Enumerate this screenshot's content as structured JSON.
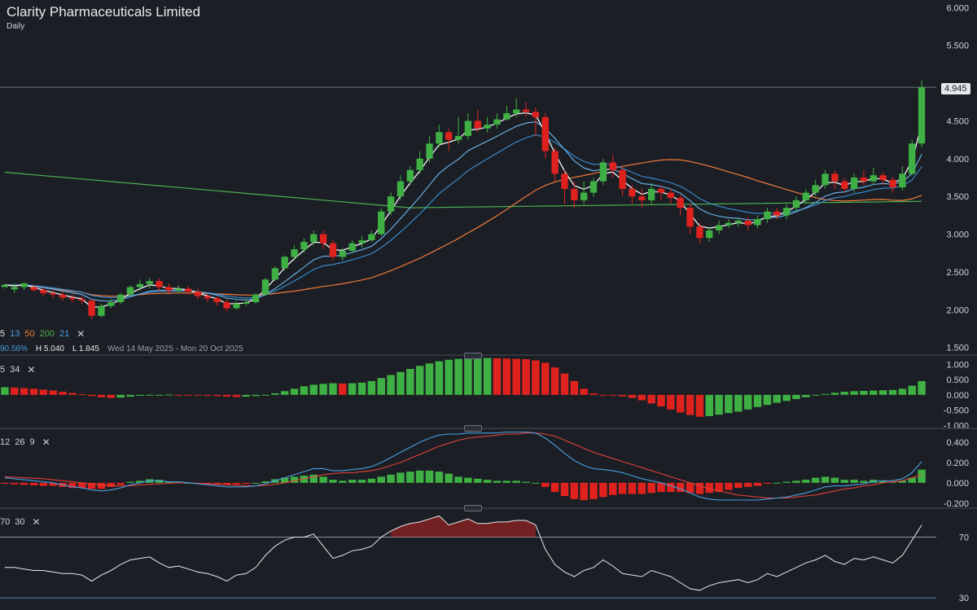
{
  "header": {
    "title": "Clarity Pharmaceuticals Limited",
    "interval": "Daily"
  },
  "legends": {
    "ma": {
      "periods": [
        "5",
        "13",
        "50",
        "200",
        "21"
      ],
      "colors": [
        "#e6e8ec",
        "#4a9ee0",
        "#f07a3a",
        "#4caf50",
        "#4a9ee0"
      ]
    },
    "info": {
      "change": "90.56%",
      "high": "H 5.040",
      "low": "L 1.845",
      "range": "Wed 14 May 2025 - Mon 20 Oct 2025"
    },
    "ao": {
      "params": [
        "5",
        "34"
      ]
    },
    "macd": {
      "params": [
        "12",
        "26",
        "9"
      ]
    },
    "rsi": {
      "params": [
        "70",
        "30"
      ]
    }
  },
  "last_price": "4.945",
  "colors": {
    "up": "#3fb043",
    "down": "#e0221f",
    "bg": "#1b1f25",
    "grid": "#3a3f48"
  },
  "chart_data": [
    {
      "type": "candlestick",
      "title": "Clarity Pharmaceuticals Limited",
      "y_ticks": [
        "6.000",
        "5.500",
        "4.500",
        "4.000",
        "3.500",
        "3.000",
        "2.500",
        "2.000",
        "1.500"
      ],
      "ylim": [
        1.4,
        6.1
      ],
      "candles": [
        [
          2.3,
          2.33,
          2.28,
          2.27
        ],
        [
          2.27,
          2.3,
          2.35,
          2.22
        ],
        [
          2.3,
          2.35,
          2.36,
          2.26
        ],
        [
          2.3,
          2.26,
          2.33,
          2.24
        ],
        [
          2.26,
          2.22,
          2.3,
          2.18
        ],
        [
          2.22,
          2.2,
          2.26,
          2.15
        ],
        [
          2.2,
          2.16,
          2.24,
          2.12
        ],
        [
          2.16,
          2.14,
          2.2,
          2.1
        ],
        [
          2.14,
          2.12,
          2.18,
          2.08
        ],
        [
          2.12,
          1.92,
          2.14,
          1.88
        ],
        [
          1.92,
          2.05,
          2.08,
          1.9
        ],
        [
          2.05,
          2.1,
          2.14,
          2.02
        ],
        [
          2.1,
          2.2,
          2.22,
          2.08
        ],
        [
          2.2,
          2.3,
          2.32,
          2.18
        ],
        [
          2.3,
          2.34,
          2.4,
          2.25
        ],
        [
          2.34,
          2.38,
          2.42,
          2.28
        ],
        [
          2.38,
          2.3,
          2.42,
          2.25
        ],
        [
          2.3,
          2.25,
          2.35,
          2.2
        ],
        [
          2.25,
          2.28,
          2.32,
          2.22
        ],
        [
          2.28,
          2.24,
          2.32,
          2.2
        ],
        [
          2.24,
          2.18,
          2.28,
          2.14
        ],
        [
          2.18,
          2.15,
          2.22,
          2.1
        ],
        [
          2.15,
          2.1,
          2.18,
          2.05
        ],
        [
          2.1,
          2.02,
          2.14,
          1.98
        ],
        [
          2.02,
          2.08,
          2.12,
          2.0
        ],
        [
          2.08,
          2.1,
          2.14,
          2.05
        ],
        [
          2.1,
          2.2,
          2.22,
          2.08
        ],
        [
          2.2,
          2.4,
          2.42,
          2.18
        ],
        [
          2.4,
          2.55,
          2.58,
          2.38
        ],
        [
          2.55,
          2.7,
          2.72,
          2.52
        ],
        [
          2.7,
          2.8,
          2.85,
          2.65
        ],
        [
          2.8,
          2.9,
          2.95,
          2.75
        ],
        [
          2.9,
          3.0,
          3.05,
          2.85
        ],
        [
          3.0,
          2.88,
          3.05,
          2.8
        ],
        [
          2.88,
          2.7,
          2.92,
          2.65
        ],
        [
          2.7,
          2.78,
          2.82,
          2.65
        ],
        [
          2.78,
          2.88,
          2.92,
          2.75
        ],
        [
          2.88,
          2.92,
          2.98,
          2.82
        ],
        [
          2.92,
          3.0,
          3.05,
          2.9
        ],
        [
          3.0,
          3.3,
          3.35,
          2.98
        ],
        [
          3.3,
          3.5,
          3.55,
          3.25
        ],
        [
          3.5,
          3.7,
          3.78,
          3.45
        ],
        [
          3.7,
          3.85,
          3.9,
          3.65
        ],
        [
          3.85,
          4.0,
          4.1,
          3.8
        ],
        [
          4.0,
          4.2,
          4.3,
          3.95
        ],
        [
          4.2,
          4.35,
          4.45,
          4.15
        ],
        [
          4.35,
          4.25,
          4.4,
          4.1
        ],
        [
          4.25,
          4.3,
          4.55,
          4.2
        ],
        [
          4.3,
          4.5,
          4.6,
          4.25
        ],
        [
          4.5,
          4.4,
          4.65,
          4.35
        ],
        [
          4.4,
          4.45,
          4.55,
          4.35
        ],
        [
          4.45,
          4.52,
          4.6,
          4.4
        ],
        [
          4.52,
          4.6,
          4.7,
          4.5
        ],
        [
          4.6,
          4.65,
          4.8,
          4.55
        ],
        [
          4.65,
          4.62,
          4.75,
          4.55
        ],
        [
          4.62,
          4.55,
          4.68,
          4.3
        ],
        [
          4.55,
          4.1,
          4.6,
          4.0
        ],
        [
          4.1,
          3.8,
          4.15,
          3.7
        ],
        [
          3.8,
          3.6,
          3.85,
          3.4
        ],
        [
          3.6,
          3.45,
          3.7,
          3.35
        ],
        [
          3.45,
          3.55,
          3.7,
          3.4
        ],
        [
          3.55,
          3.7,
          3.75,
          3.5
        ],
        [
          3.7,
          3.95,
          4.0,
          3.65
        ],
        [
          3.95,
          3.85,
          4.05,
          3.75
        ],
        [
          3.85,
          3.6,
          3.9,
          3.5
        ],
        [
          3.6,
          3.5,
          3.65,
          3.4
        ],
        [
          3.5,
          3.45,
          3.6,
          3.35
        ],
        [
          3.45,
          3.6,
          3.68,
          3.4
        ],
        [
          3.6,
          3.55,
          3.65,
          3.45
        ],
        [
          3.55,
          3.48,
          3.6,
          3.4
        ],
        [
          3.48,
          3.35,
          3.52,
          3.25
        ],
        [
          3.35,
          3.1,
          3.4,
          3.0
        ],
        [
          3.1,
          2.95,
          3.15,
          2.88
        ],
        [
          2.95,
          3.05,
          3.1,
          2.9
        ],
        [
          3.05,
          3.12,
          3.18,
          3.0
        ],
        [
          3.12,
          3.15,
          3.2,
          3.08
        ],
        [
          3.15,
          3.18,
          3.22,
          3.1
        ],
        [
          3.18,
          3.12,
          3.22,
          3.05
        ],
        [
          3.12,
          3.2,
          3.25,
          3.08
        ],
        [
          3.2,
          3.3,
          3.35,
          3.15
        ],
        [
          3.3,
          3.25,
          3.35,
          3.2
        ],
        [
          3.25,
          3.35,
          3.4,
          3.2
        ],
        [
          3.35,
          3.45,
          3.5,
          3.3
        ],
        [
          3.45,
          3.55,
          3.6,
          3.4
        ],
        [
          3.55,
          3.65,
          3.72,
          3.5
        ],
        [
          3.65,
          3.8,
          3.85,
          3.6
        ],
        [
          3.8,
          3.7,
          3.85,
          3.6
        ],
        [
          3.7,
          3.6,
          3.75,
          3.55
        ],
        [
          3.6,
          3.75,
          3.8,
          3.55
        ],
        [
          3.75,
          3.7,
          3.85,
          3.65
        ],
        [
          3.7,
          3.78,
          3.88,
          3.65
        ],
        [
          3.78,
          3.72,
          3.82,
          3.65
        ],
        [
          3.72,
          3.62,
          3.76,
          3.55
        ],
        [
          3.62,
          3.8,
          3.9,
          3.58
        ],
        [
          3.8,
          4.2,
          4.25,
          3.78
        ],
        [
          4.2,
          4.945,
          5.04,
          4.15
        ]
      ]
    },
    {
      "type": "bar",
      "title": "Awesome Oscillator",
      "y_ticks": [
        "1.000",
        "0.500",
        "0.000",
        "-0.500",
        "-1.000"
      ],
      "ylim": [
        -1.1,
        1.25
      ],
      "values": [
        0.25,
        0.24,
        0.22,
        0.2,
        0.17,
        0.14,
        0.1,
        0.06,
        0.02,
        -0.04,
        -0.08,
        -0.1,
        -0.09,
        -0.06,
        -0.03,
        -0.01,
        0.0,
        0.01,
        0.0,
        -0.01,
        -0.02,
        -0.03,
        -0.04,
        -0.06,
        -0.07,
        -0.06,
        -0.04,
        0.0,
        0.05,
        0.12,
        0.2,
        0.28,
        0.33,
        0.36,
        0.38,
        0.37,
        0.38,
        0.4,
        0.45,
        0.55,
        0.65,
        0.75,
        0.85,
        0.95,
        1.03,
        1.1,
        1.15,
        1.18,
        1.2,
        1.21,
        1.21,
        1.2,
        1.19,
        1.18,
        1.17,
        1.13,
        1.05,
        0.9,
        0.7,
        0.45,
        0.2,
        0.05,
        0.0,
        -0.02,
        -0.05,
        -0.1,
        -0.18,
        -0.28,
        -0.38,
        -0.48,
        -0.58,
        -0.66,
        -0.72,
        -0.7,
        -0.65,
        -0.6,
        -0.55,
        -0.48,
        -0.4,
        -0.33,
        -0.26,
        -0.2,
        -0.14,
        -0.08,
        -0.02,
        0.03,
        0.07,
        0.1,
        0.12,
        0.13,
        0.14,
        0.15,
        0.16,
        0.2,
        0.3,
        0.45
      ]
    },
    {
      "type": "line",
      "title": "MACD",
      "y_ticks": [
        "0.400",
        "0.200",
        "0.000",
        "-0.200"
      ],
      "ylim": [
        -0.25,
        0.52
      ],
      "macd": [
        0.05,
        0.04,
        0.03,
        0.02,
        0.01,
        0.0,
        -0.02,
        -0.04,
        -0.05,
        -0.07,
        -0.08,
        -0.07,
        -0.05,
        -0.02,
        0.0,
        0.02,
        0.02,
        0.01,
        0.01,
        0.0,
        -0.01,
        -0.02,
        -0.03,
        -0.04,
        -0.04,
        -0.04,
        -0.03,
        -0.01,
        0.02,
        0.05,
        0.08,
        0.11,
        0.14,
        0.14,
        0.12,
        0.12,
        0.13,
        0.14,
        0.16,
        0.2,
        0.25,
        0.3,
        0.35,
        0.4,
        0.44,
        0.47,
        0.48,
        0.48,
        0.49,
        0.49,
        0.49,
        0.49,
        0.5,
        0.5,
        0.5,
        0.49,
        0.44,
        0.37,
        0.29,
        0.22,
        0.17,
        0.14,
        0.13,
        0.12,
        0.1,
        0.07,
        0.04,
        0.02,
        0.0,
        -0.03,
        -0.06,
        -0.1,
        -0.14,
        -0.16,
        -0.17,
        -0.17,
        -0.17,
        -0.17,
        -0.17,
        -0.16,
        -0.15,
        -0.14,
        -0.12,
        -0.1,
        -0.07,
        -0.04,
        -0.03,
        -0.03,
        -0.02,
        -0.01,
        0.01,
        0.02,
        0.02,
        0.04,
        0.1,
        0.21
      ],
      "signal": [
        0.06,
        0.055,
        0.05,
        0.045,
        0.04,
        0.03,
        0.02,
        0.01,
        0.0,
        -0.01,
        -0.02,
        -0.03,
        -0.03,
        -0.03,
        -0.02,
        -0.015,
        -0.01,
        -0.005,
        0.0,
        0.0,
        -0.005,
        -0.01,
        -0.015,
        -0.02,
        -0.025,
        -0.03,
        -0.03,
        -0.025,
        -0.015,
        0.0,
        0.02,
        0.04,
        0.06,
        0.08,
        0.09,
        0.1,
        0.1,
        0.11,
        0.12,
        0.14,
        0.17,
        0.2,
        0.24,
        0.28,
        0.32,
        0.36,
        0.39,
        0.42,
        0.44,
        0.45,
        0.46,
        0.47,
        0.48,
        0.48,
        0.49,
        0.49,
        0.48,
        0.46,
        0.42,
        0.38,
        0.34,
        0.3,
        0.27,
        0.24,
        0.21,
        0.18,
        0.15,
        0.12,
        0.09,
        0.06,
        0.03,
        0.0,
        -0.03,
        -0.06,
        -0.08,
        -0.1,
        -0.12,
        -0.13,
        -0.14,
        -0.15,
        -0.15,
        -0.15,
        -0.14,
        -0.13,
        -0.12,
        -0.1,
        -0.08,
        -0.06,
        -0.05,
        -0.03,
        -0.02,
        0.0,
        0.01,
        0.02,
        0.05,
        0.08
      ],
      "hist": [
        -0.01,
        -0.015,
        -0.02,
        -0.025,
        -0.03,
        -0.03,
        -0.04,
        -0.05,
        -0.05,
        -0.06,
        -0.06,
        -0.04,
        -0.02,
        0.01,
        0.02,
        0.035,
        0.03,
        0.015,
        0.01,
        0.0,
        -0.005,
        -0.01,
        -0.015,
        -0.02,
        -0.015,
        -0.01,
        0.0,
        0.015,
        0.035,
        0.05,
        0.06,
        0.07,
        0.08,
        0.06,
        0.03,
        0.02,
        0.03,
        0.03,
        0.04,
        0.06,
        0.08,
        0.1,
        0.11,
        0.12,
        0.12,
        0.11,
        0.09,
        0.06,
        0.05,
        0.04,
        0.03,
        0.02,
        0.02,
        0.02,
        0.01,
        0.0,
        -0.04,
        -0.09,
        -0.13,
        -0.16,
        -0.17,
        -0.16,
        -0.14,
        -0.12,
        -0.11,
        -0.11,
        -0.11,
        -0.1,
        -0.09,
        -0.09,
        -0.09,
        -0.1,
        -0.11,
        -0.1,
        -0.09,
        -0.07,
        -0.05,
        -0.04,
        -0.03,
        -0.01,
        0.0,
        0.01,
        0.02,
        0.03,
        0.05,
        0.06,
        0.05,
        0.03,
        0.03,
        0.02,
        0.03,
        0.02,
        0.01,
        0.02,
        0.05,
        0.13
      ]
    },
    {
      "type": "line",
      "title": "RSI",
      "y_ticks": [
        "70",
        "30"
      ],
      "ylim": [
        22,
        88
      ],
      "values": [
        50,
        50,
        49,
        48,
        48,
        47,
        46,
        46,
        45,
        41,
        45,
        48,
        52,
        55,
        56,
        57,
        53,
        50,
        51,
        49,
        47,
        46,
        44,
        41,
        45,
        46,
        50,
        58,
        64,
        68,
        70,
        70,
        72,
        64,
        56,
        58,
        61,
        62,
        64,
        70,
        74,
        77,
        79,
        80,
        82,
        84,
        78,
        80,
        82,
        79,
        79,
        80,
        80,
        81,
        81,
        78,
        62,
        52,
        47,
        44,
        48,
        50,
        55,
        51,
        46,
        45,
        44,
        48,
        46,
        44,
        40,
        36,
        35,
        38,
        40,
        41,
        42,
        40,
        42,
        46,
        44,
        47,
        50,
        53,
        55,
        58,
        54,
        52,
        56,
        55,
        57,
        55,
        53,
        58,
        68,
        78
      ]
    }
  ]
}
